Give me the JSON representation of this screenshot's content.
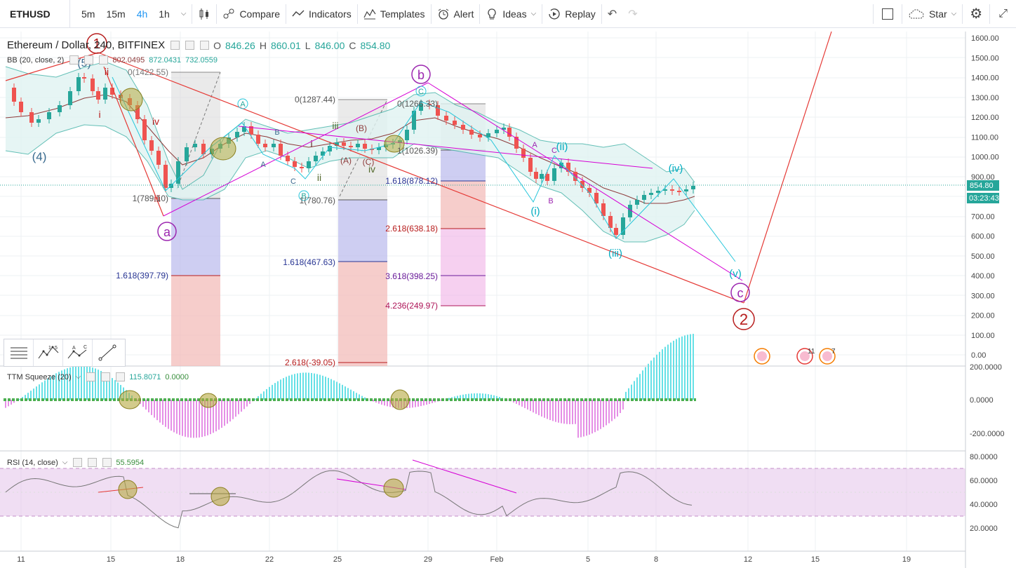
{
  "toolbar": {
    "symbol": "ETHUSD",
    "intervals": [
      "5m",
      "15m",
      "4h",
      "1h"
    ],
    "active_interval": "4h",
    "compare": "Compare",
    "indicators": "Indicators",
    "templates": "Templates",
    "alert": "Alert",
    "ideas": "Ideas",
    "replay": "Replay",
    "star": "Star"
  },
  "main_legend": {
    "title": "Ethereum / Dollar, 240, BITFINEX",
    "o_label": "O",
    "o": "846.26",
    "h_label": "H",
    "h": "860.01",
    "l_label": "L",
    "l": "846.00",
    "c_label": "C",
    "c": "854.80"
  },
  "bb_legend": {
    "name": "BB (20, close, 2)",
    "v1": "802.0495",
    "v2": "872.0431",
    "v3": "732.0559"
  },
  "ttm_legend": {
    "name": "TTM Squeeze (20)",
    "v1": "115.8071",
    "v2": "0.0000"
  },
  "rsi_legend": {
    "name": "RSI (14, close)",
    "v1": "55.5954"
  },
  "price_axis": {
    "labels": [
      "1600.00",
      "1500.00",
      "1400.00",
      "1300.00",
      "1200.00",
      "1100.00",
      "1000.00",
      "900.00",
      "800.00",
      "700.00",
      "600.00",
      "500.00",
      "400.00",
      "300.00",
      "200.00",
      "100.00",
      "0.00"
    ],
    "last_price": "854.80",
    "countdown": "03:23:43"
  },
  "ttm_axis": {
    "labels": [
      "200.0000",
      "0.0000",
      "-200.0000"
    ]
  },
  "rsi_axis": {
    "labels": [
      "80.0000",
      "60.0000",
      "40.0000",
      "20.0000"
    ]
  },
  "time_axis": {
    "labels": [
      "11",
      "15",
      "18",
      "22",
      "25",
      "29",
      "Feb",
      "5",
      "8",
      "12",
      "15",
      "19"
    ]
  },
  "fib_labels": [
    "0(1422.55)",
    "1(789.10)",
    "1.618(397.79)",
    "0(1287.44)",
    "1(780.76)",
    "1.618(467.63)",
    "2.618(-39.05)",
    "0(1266.33)",
    "1(1026.39)",
    "1.618(878.12)",
    "2.618(638.18)",
    "3.618(398.25)",
    "4.236(249.97)"
  ],
  "wave_labels": {
    "major_1": "1",
    "major_2": "2",
    "minor_a": "a",
    "minor_b": "b",
    "minor_c": "c",
    "w5": "(5)",
    "w4": "(4)",
    "i": "i",
    "ii": "ii",
    "iii": "iii",
    "iv": "iv",
    "i2": "i",
    "ii2": "ii",
    "iii2": "iii",
    "iv2": "iv",
    "cA": "A",
    "cB": "B",
    "cC": "C",
    "pA": "(A)",
    "pB": "(B)",
    "pC": "(C)",
    "wi": "(i)",
    "wii": "(ii)",
    "wiii": "(iii)",
    "wiv": "(iv)",
    "wv": "(v)",
    "sA": "A",
    "sB": "B",
    "sC": "C"
  },
  "event_badges": {
    "b1": "11",
    "b2": "7"
  },
  "colors": {
    "up": "#26a69a",
    "down": "#ef5350",
    "accent": "#2196f3",
    "magenta": "#cc00cc",
    "cyan": "#00bcd4",
    "red_line": "#e53935",
    "bb_fill": "#e0f2f1"
  }
}
